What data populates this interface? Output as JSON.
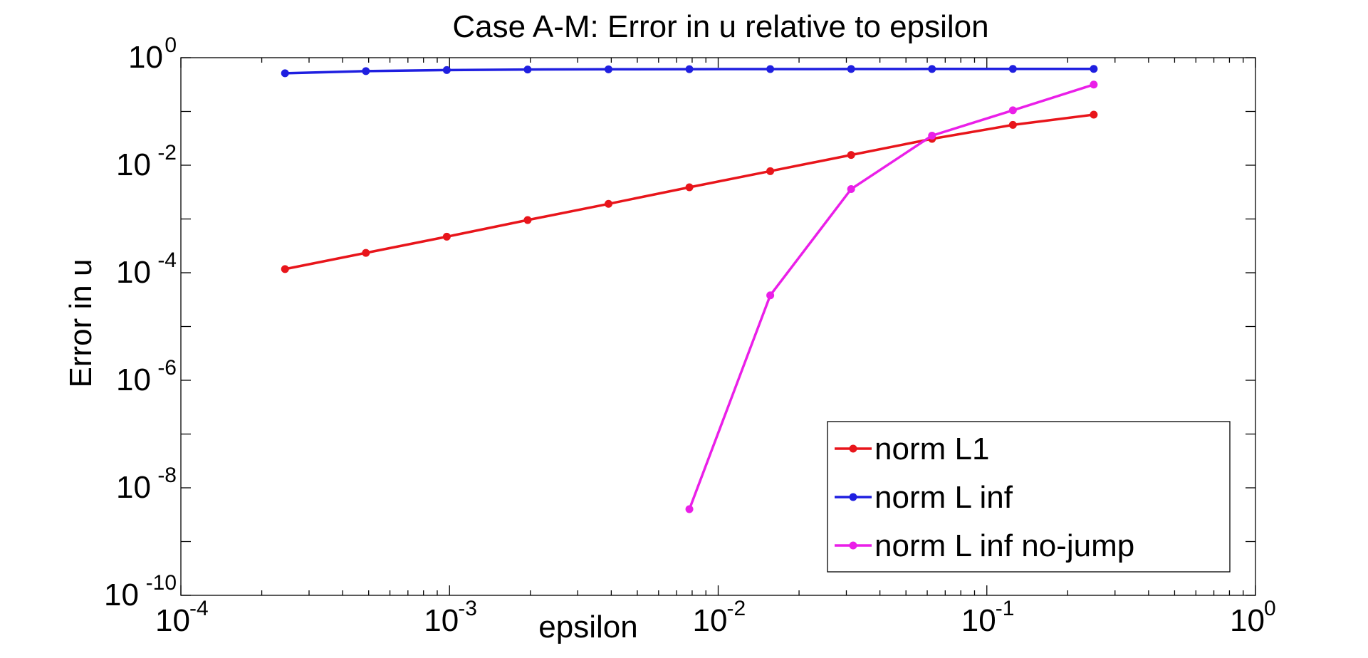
{
  "chart_data": {
    "type": "line",
    "title": "Case A-M: Error in u relative to epsilon",
    "xlabel": "epsilon",
    "ylabel": "Error in u",
    "xscale": "log",
    "yscale": "log",
    "xlim": [
      0.0001,
      1
    ],
    "ylim": [
      1e-10,
      1
    ],
    "xticks": [
      {
        "value": 0.0001,
        "base": "10",
        "exp": "-4"
      },
      {
        "value": 0.001,
        "base": "10",
        "exp": "-3"
      },
      {
        "value": 0.01,
        "base": "10",
        "exp": "-2"
      },
      {
        "value": 0.1,
        "base": "10",
        "exp": "-1"
      },
      {
        "value": 1,
        "base": "10",
        "exp": "0"
      }
    ],
    "yticks": [
      {
        "value": 1,
        "base": "10",
        "exp": "0"
      },
      {
        "value": 0.01,
        "base": "10",
        "exp": "-2"
      },
      {
        "value": 0.0001,
        "base": "10",
        "exp": "-4"
      },
      {
        "value": 1e-06,
        "base": "10",
        "exp": "-6"
      },
      {
        "value": 1e-08,
        "base": "10",
        "exp": "-8"
      },
      {
        "value": 1e-10,
        "base": "10",
        "exp": "-10"
      }
    ],
    "grid": false,
    "legend_position": "bottom-right",
    "series": [
      {
        "name": "norm L1",
        "color": "#e8151b",
        "x": [
          0.000244140625,
          0.00048828125,
          0.0009765625,
          0.001953125,
          0.00390625,
          0.0078125,
          0.015625,
          0.03125,
          0.0625,
          0.125,
          0.25
        ],
        "y": [
          0.000117,
          0.000234,
          0.000468,
          0.000955,
          0.00191,
          0.00389,
          0.00776,
          0.0155,
          0.0309,
          0.0562,
          0.0871
        ]
      },
      {
        "name": "norm L inf",
        "color": "#1f1fe0",
        "x": [
          0.000244140625,
          0.00048828125,
          0.0009765625,
          0.001953125,
          0.00390625,
          0.0078125,
          0.015625,
          0.03125,
          0.0625,
          0.125,
          0.25
        ],
        "y": [
          0.513,
          0.562,
          0.589,
          0.603,
          0.608,
          0.612,
          0.614,
          0.616,
          0.617,
          0.618,
          0.619
        ]
      },
      {
        "name": "norm L inf no-jump",
        "color": "#ea1fe8",
        "x": [
          0.0078125,
          0.015625,
          0.03125,
          0.0625,
          0.125,
          0.25
        ],
        "y": [
          4e-09,
          3.8e-05,
          0.0036,
          0.0355,
          0.105,
          0.316
        ]
      }
    ]
  }
}
